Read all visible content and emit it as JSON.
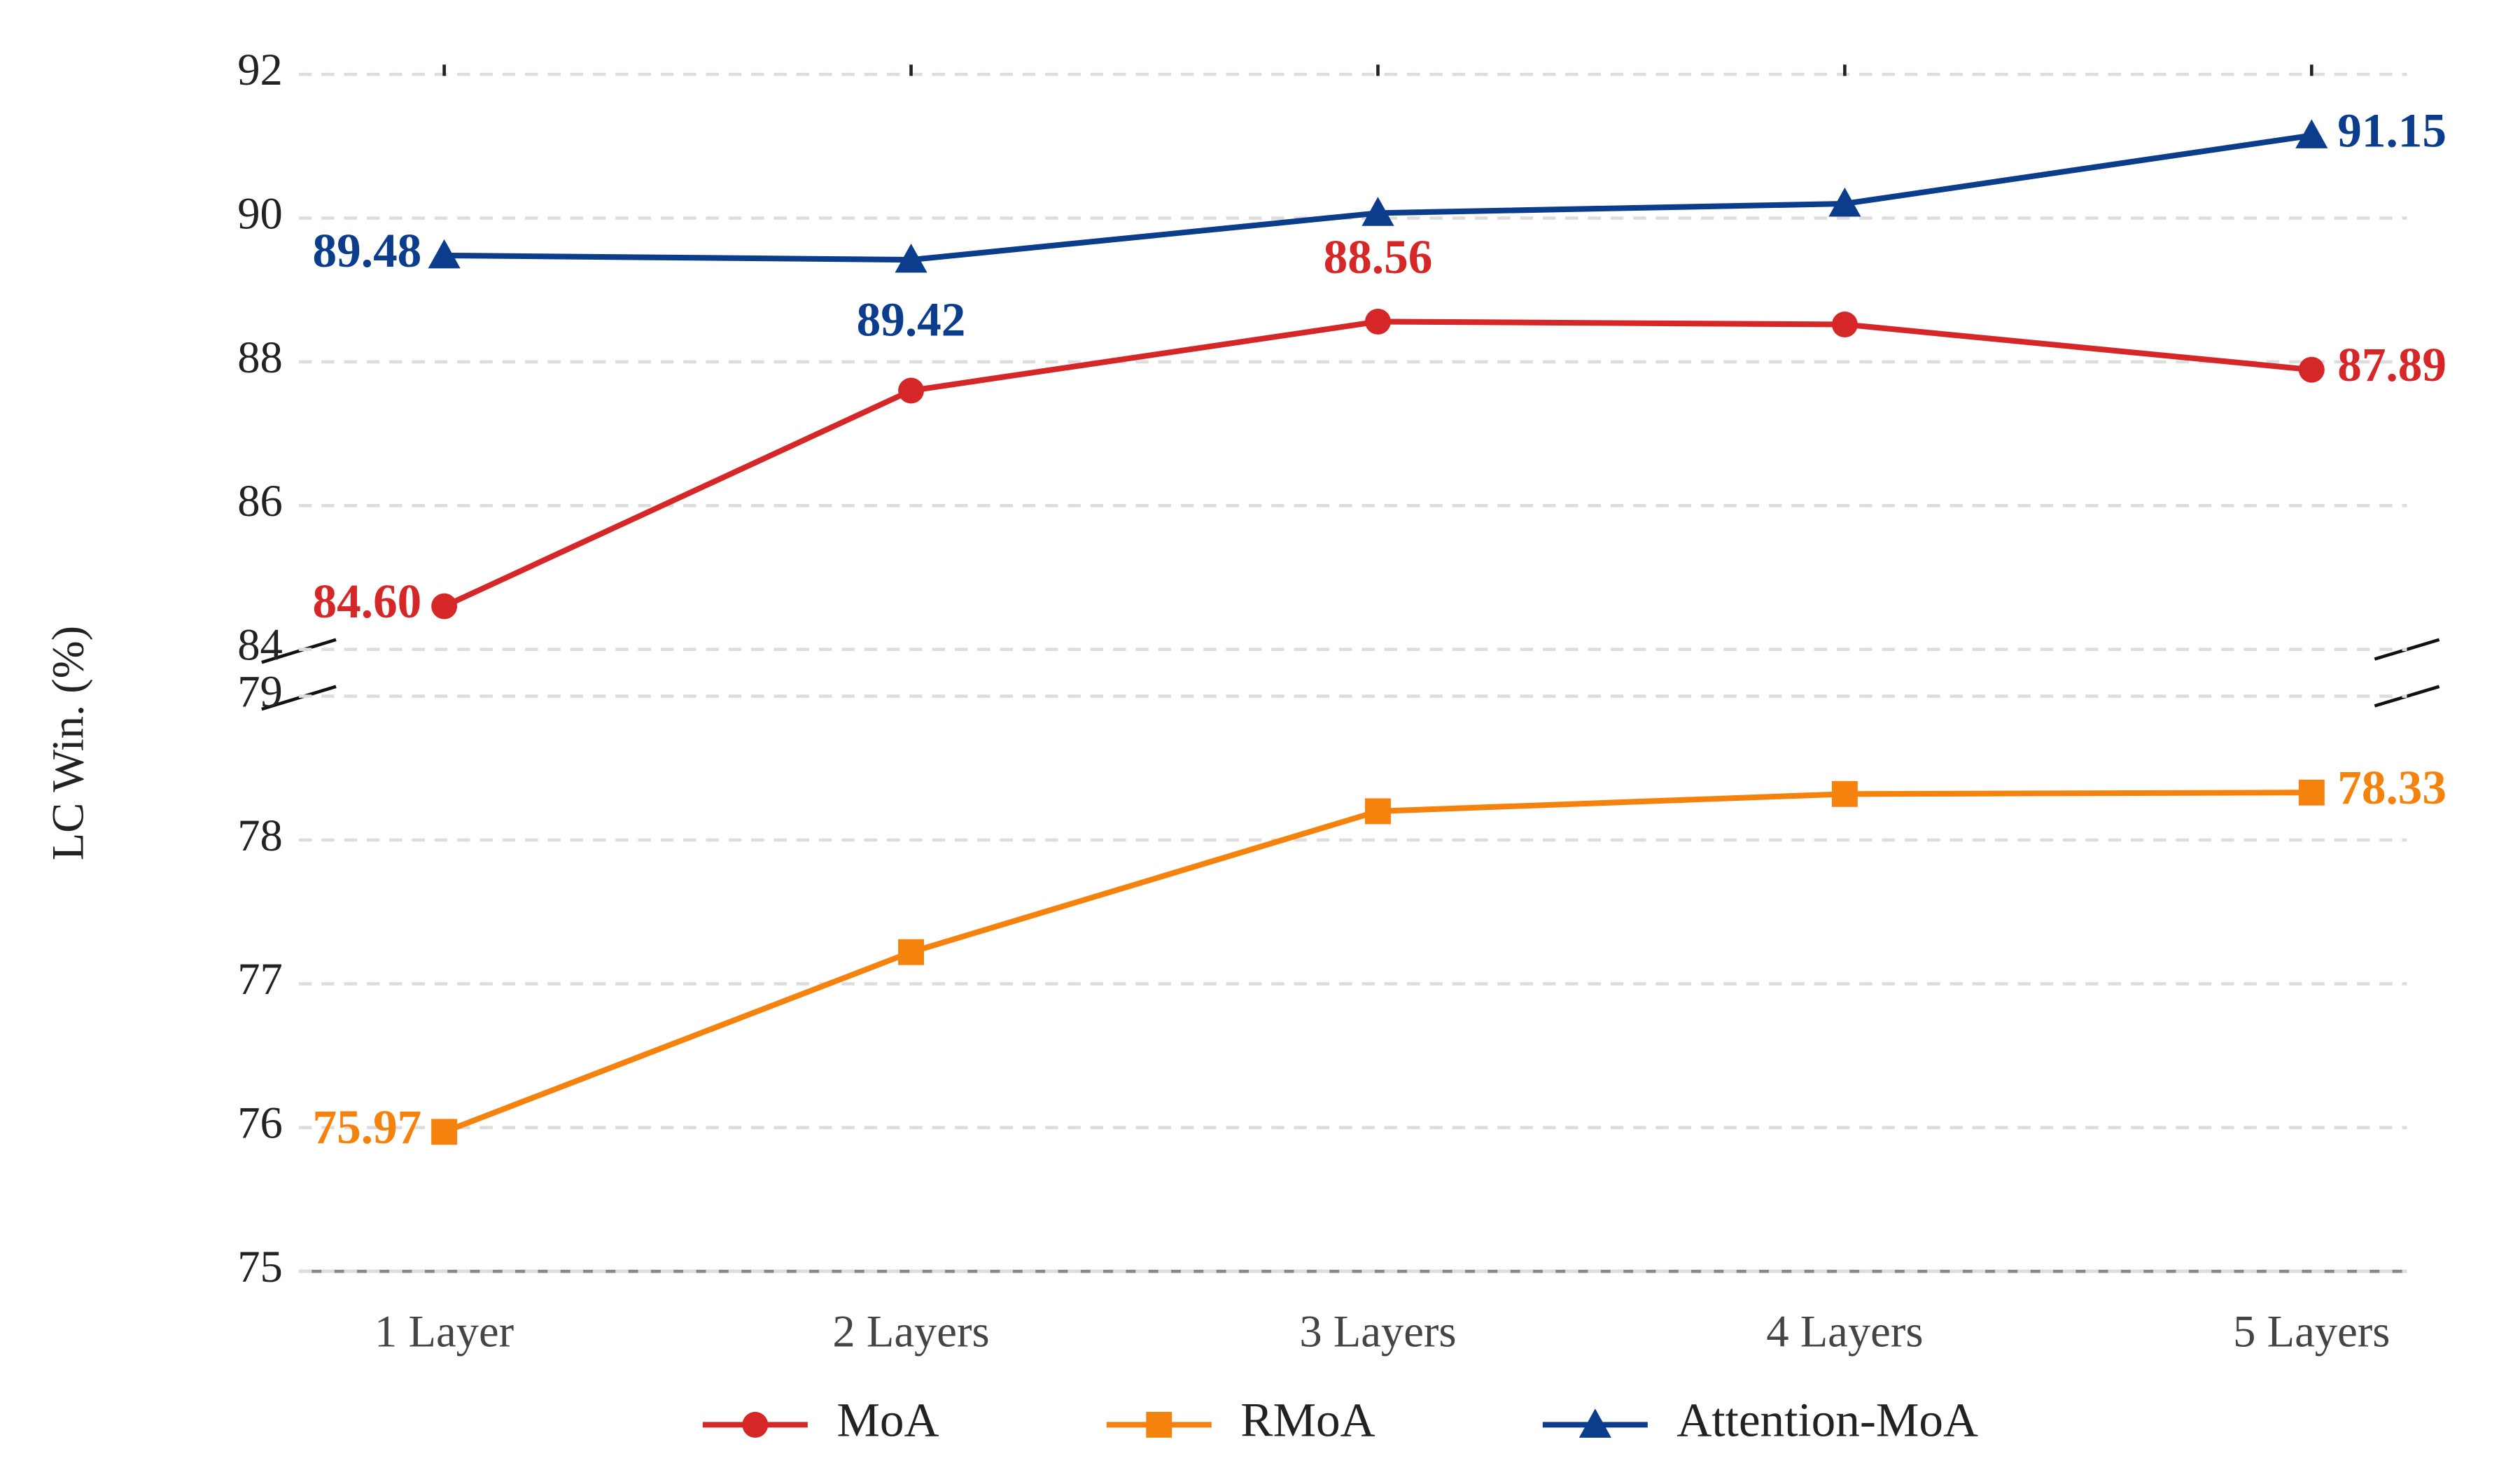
{
  "chart_data": {
    "type": "line",
    "y_label": "LC Win. (%)",
    "categories": [
      "1 Layer",
      "2 Layers",
      "3 Layers",
      "4 Layers",
      "5 Layers"
    ],
    "ylim": [
      84,
      92
    ],
    "yticks": [
      84,
      86,
      88,
      90,
      92
    ],
    "y2lim": [
      75,
      79
    ],
    "y2ticks": [
      75,
      76,
      77,
      78,
      79
    ],
    "grid": true,
    "broken_axis": true,
    "legend": "bottom",
    "series": [
      {
        "name": "MoA",
        "color": "#d62728",
        "marker": "circle",
        "axis": "y",
        "values": [
          84.6,
          87.6,
          88.56,
          88.52,
          87.89
        ],
        "value_labels": [
          "84.60",
          null,
          "88.56",
          null,
          "87.89"
        ]
      },
      {
        "name": "RMoA",
        "color": "#f5820d",
        "marker": "square",
        "axis": "y2",
        "values": [
          75.97,
          77.22,
          78.2,
          78.32,
          78.33
        ],
        "value_labels": [
          "75.97",
          null,
          null,
          null,
          "78.33"
        ]
      },
      {
        "name": "Attention-MoA",
        "color": "#0b3d8c",
        "marker": "triangle",
        "axis": "y",
        "values": [
          89.48,
          89.42,
          90.07,
          90.2,
          91.15
        ],
        "value_labels": [
          "89.48",
          "89.42",
          null,
          null,
          "91.15"
        ]
      }
    ]
  }
}
